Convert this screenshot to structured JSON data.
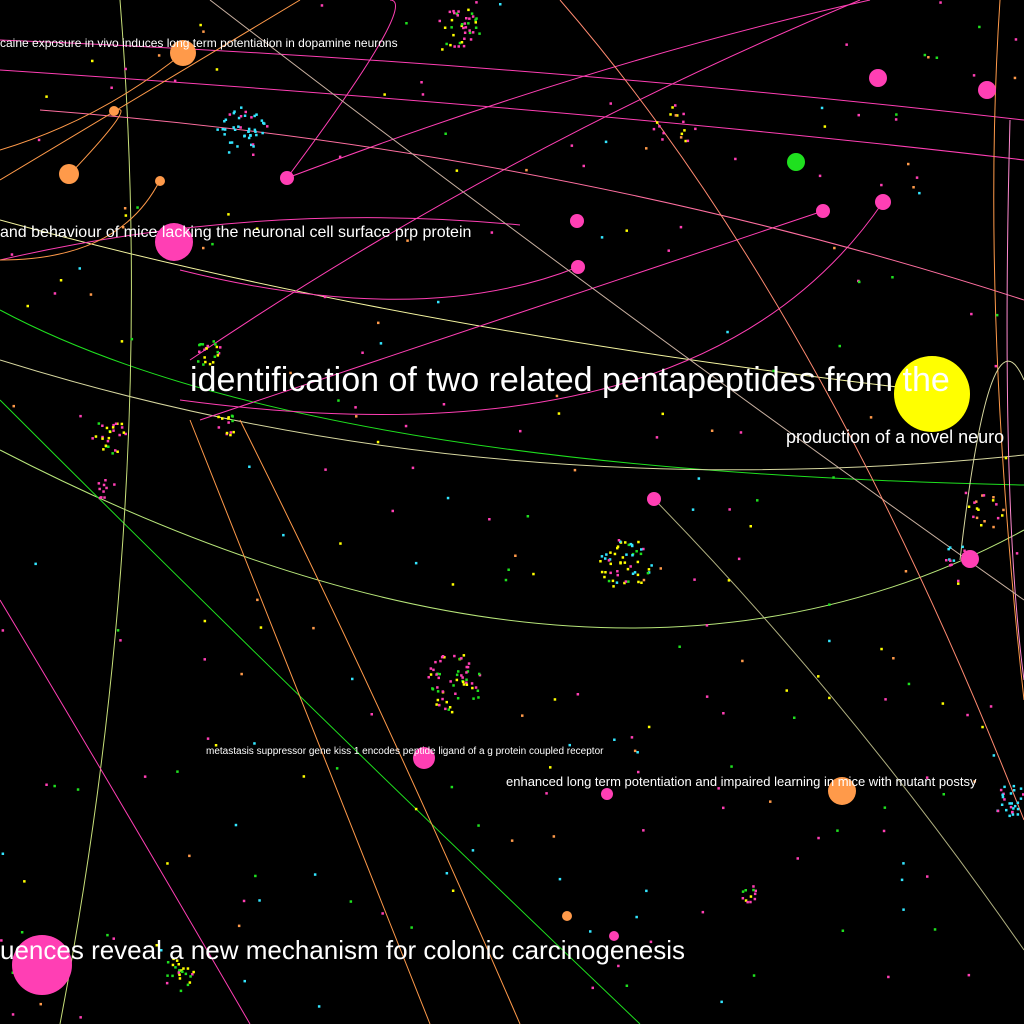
{
  "palette": {
    "background": "#000000",
    "magenta": "#ff3fb4",
    "orange": "#ff9a4a",
    "yellow": "#ffff00",
    "green": "#1fe01f",
    "cyan": "#33e6ff",
    "light_pink": "#ff8ad0",
    "light_yellow": "#f5f5a0"
  },
  "labels": [
    {
      "id": "cocaine-ltp",
      "text": "caine exposure in vivo induces long term potentiation in dopamine neurons"
    },
    {
      "id": "prp-mice",
      "text": "and behaviour of mice lacking the neuronal cell surface prp protein"
    },
    {
      "id": "pentapeptides",
      "text": "identification of two related pentapeptides from the"
    },
    {
      "id": "novel-neuro",
      "text": "production of a novel neuro"
    },
    {
      "id": "kiss1",
      "text": "metastasis suppressor gene kiss 1 encodes peptide ligand of a g protein coupled receptor"
    },
    {
      "id": "ltp-mutant",
      "text": "enhanced long term potentiation and impaired learning in mice with mutant postsy"
    },
    {
      "id": "colonic",
      "text": "uences reveal a new mechanism for colonic carcinogenesis"
    }
  ]
}
